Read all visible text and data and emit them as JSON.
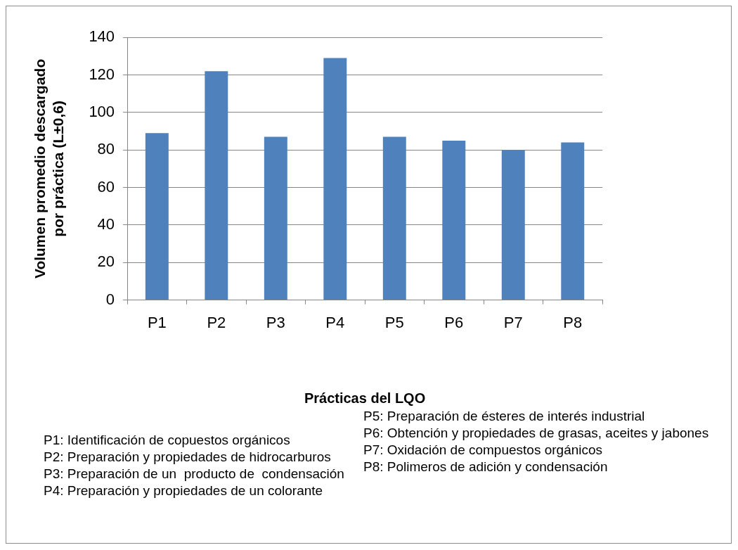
{
  "chart_data": {
    "type": "bar",
    "categories": [
      "P1",
      "P2",
      "P3",
      "P4",
      "P5",
      "P6",
      "P7",
      "P8"
    ],
    "values": [
      89,
      122,
      87,
      129,
      87,
      85,
      80,
      84
    ],
    "color": "#4f81bd",
    "ylabel": "Volumen promedio descargado por práctica (L±0,6)",
    "xlabel": "Prácticas del LQO",
    "ylim": [
      0,
      140
    ],
    "yticks": [
      0,
      20,
      40,
      60,
      80,
      100,
      120,
      140
    ],
    "grid": "y",
    "annotations": [
      "P1: Identificación de copuestos orgánicos",
      "P2: Preparación y propiedades de hidrocarburos",
      "P3: Preparación de un  producto de  condensación",
      "P4: Preparación y propiedades de un colorante",
      "P5: Preparación de ésteres de interés industrial",
      "P6: Obtención y propiedades de grasas, aceites y jabones",
      "P7: Oxidación de compuestos orgánicos",
      "P8: Polimeros de adición y condensación"
    ]
  }
}
